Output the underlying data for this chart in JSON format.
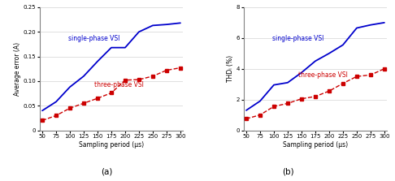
{
  "x": [
    50,
    75,
    100,
    125,
    150,
    175,
    200,
    225,
    250,
    275,
    300
  ],
  "avg_error_single": [
    0.04,
    0.058,
    0.088,
    0.11,
    0.14,
    0.168,
    0.168,
    0.2,
    0.213,
    0.215,
    0.218
  ],
  "avg_error_three": [
    0.02,
    0.03,
    0.045,
    0.055,
    0.065,
    0.076,
    0.102,
    0.103,
    0.11,
    0.122,
    0.127
  ],
  "thd_single": [
    1.3,
    1.9,
    2.95,
    3.1,
    3.75,
    4.5,
    5.0,
    5.55,
    6.65,
    6.85,
    7.0
  ],
  "thd_three": [
    0.75,
    1.0,
    1.55,
    1.75,
    2.05,
    2.2,
    2.55,
    3.05,
    3.5,
    3.6,
    4.0
  ],
  "color_single": "#0000cc",
  "color_three": "#cc0000",
  "xlabel": "Sampling period (μs)",
  "ylabel_a": "Average error (A)",
  "ylabel_b": "THDᵢ (%)",
  "label_single": "single-phase VSI",
  "label_three": "three-phase VSI",
  "caption_a": "(a)",
  "caption_b": "(b)",
  "ylim_a": [
    0,
    0.25
  ],
  "ylim_b": [
    0,
    8
  ],
  "yticks_a": [
    0,
    0.05,
    0.1,
    0.15,
    0.2,
    0.25
  ],
  "yticks_b": [
    0,
    2,
    4,
    6,
    8
  ],
  "xticks": [
    50,
    75,
    100,
    125,
    150,
    175,
    200,
    225,
    250,
    275,
    300
  ]
}
